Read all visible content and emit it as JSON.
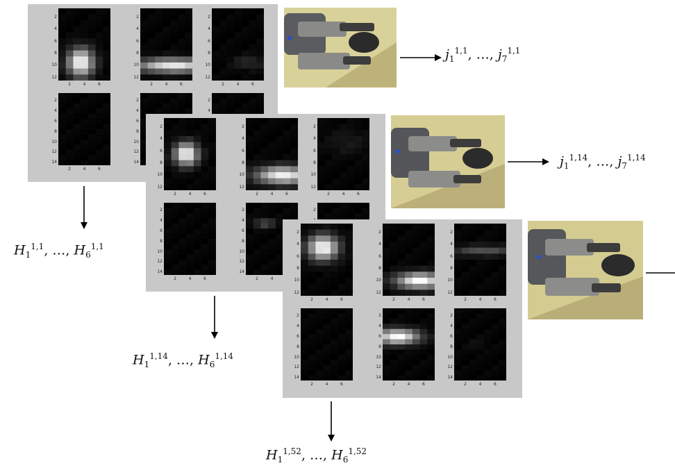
{
  "frames": [
    {
      "id": "frame-1",
      "sensor_label": {
        "var": "H",
        "first_index": "1",
        "last_index": "6",
        "superscript": "1,1",
        "separator": ", …, "
      },
      "joint_label": {
        "var": "j",
        "first_index": "1",
        "last_index": "7",
        "superscript": "1,1",
        "separator": ", …, "
      },
      "heatmaps": [
        {
          "rows": 12,
          "peak_row": 9,
          "peak_col": 3,
          "spread_r": 1.6,
          "spread_c": 1.2,
          "intensity": 1.0
        },
        {
          "rows": 12,
          "peak_row": 9.5,
          "peak_col": 4.5,
          "spread_r": 0.8,
          "spread_c": 3.5,
          "intensity": 0.9
        },
        {
          "rows": 12,
          "peak_row": 9,
          "peak_col": 5,
          "spread_r": 0.8,
          "spread_c": 1.5,
          "intensity": 0.15
        },
        {
          "rows": 14,
          "peak_row": 7,
          "peak_col": 3,
          "spread_r": 1,
          "spread_c": 1,
          "intensity": 0.0
        },
        {
          "rows": 14,
          "peak_row": 7,
          "peak_col": 3,
          "spread_r": 1,
          "spread_c": 1,
          "intensity": 0.0
        },
        {
          "rows": 14,
          "peak_row": 7,
          "peak_col": 3,
          "spread_r": 1,
          "spread_c": 1,
          "intensity": 0.0
        }
      ]
    },
    {
      "id": "frame-14",
      "sensor_label": {
        "var": "H",
        "first_index": "1",
        "last_index": "6",
        "superscript": "1,14",
        "separator": ", …, "
      },
      "joint_label": {
        "var": "j",
        "first_index": "1",
        "last_index": "7",
        "superscript": "1,14",
        "separator": ", …, "
      },
      "heatmaps": [
        {
          "rows": 12,
          "peak_row": 6,
          "peak_col": 3,
          "spread_r": 1.3,
          "spread_c": 1.1,
          "intensity": 1.0
        },
        {
          "rows": 12,
          "peak_row": 9.5,
          "peak_col": 5,
          "spread_r": 1.0,
          "spread_c": 2.5,
          "intensity": 0.95
        },
        {
          "rows": 12,
          "peak_row": 4,
          "peak_col": 4,
          "spread_r": 1.5,
          "spread_c": 2,
          "intensity": 0.08
        },
        {
          "rows": 14,
          "peak_row": 7,
          "peak_col": 3,
          "spread_r": 1,
          "spread_c": 1,
          "intensity": 0.0
        },
        {
          "rows": 14,
          "peak_row": 4,
          "peak_col": 2.5,
          "spread_r": 0.6,
          "spread_c": 1,
          "intensity": 0.3
        },
        {
          "rows": 14,
          "peak_row": 7,
          "peak_col": 3,
          "spread_r": 1,
          "spread_c": 1,
          "intensity": 0.0
        }
      ]
    },
    {
      "id": "frame-52",
      "sensor_label": {
        "var": "H",
        "first_index": "1",
        "last_index": "6",
        "superscript": "1,52",
        "separator": ", …, "
      },
      "joint_label": {
        "var": "j",
        "first_index": "1",
        "last_index": "7",
        "superscript": "1,52",
        "separator": ", …, "
      },
      "heatmaps": [
        {
          "rows": 12,
          "peak_row": 4,
          "peak_col": 3,
          "spread_r": 1.4,
          "spread_c": 1.4,
          "intensity": 1.0
        },
        {
          "rows": 12,
          "peak_row": 9.5,
          "peak_col": 5,
          "spread_r": 0.9,
          "spread_c": 2.2,
          "intensity": 1.0
        },
        {
          "rows": 12,
          "peak_row": 4.5,
          "peak_col": 4,
          "spread_r": 0.6,
          "spread_c": 3,
          "intensity": 0.3
        },
        {
          "rows": 14,
          "peak_row": 7,
          "peak_col": 3,
          "spread_r": 1,
          "spread_c": 1,
          "intensity": 0.0
        },
        {
          "rows": 14,
          "peak_row": 5.5,
          "peak_col": 2,
          "spread_r": 1.0,
          "spread_c": 2.0,
          "intensity": 1.0
        },
        {
          "rows": 14,
          "peak_row": 7,
          "peak_col": 3,
          "spread_r": 1,
          "spread_c": 1,
          "intensity": 0.04
        }
      ]
    }
  ],
  "y_ticks_12": [
    "2",
    "4",
    "6",
    "8",
    "10",
    "12"
  ],
  "y_ticks_14": [
    "2",
    "4",
    "6",
    "8",
    "10",
    "12",
    "14"
  ],
  "x_ticks": [
    "2",
    "4",
    "6"
  ],
  "colors": {
    "panel_bg": "#c8c8c8",
    "heatmap_bg": "#000000",
    "photo_bg": "#d9d19a"
  },
  "icons": [
    "gripper-photo-icon"
  ]
}
